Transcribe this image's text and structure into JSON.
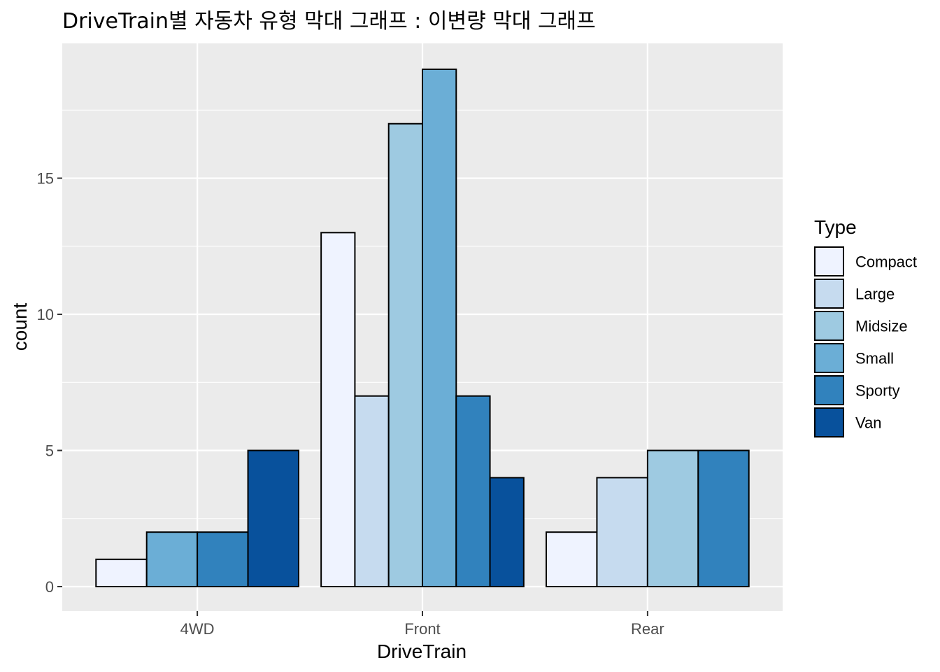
{
  "chart_data": {
    "type": "bar",
    "title": "DriveTrain별 자동차 유형 막대 그래프 : 이변량 막대 그래프",
    "xlabel": "DriveTrain",
    "ylabel": "count",
    "categories": [
      "4WD",
      "Front",
      "Rear"
    ],
    "ylim": [
      -0.9,
      19.95
    ],
    "yticks": [
      0,
      5,
      10,
      15
    ],
    "grid": true,
    "legend": {
      "title": "Type",
      "position": "right"
    },
    "series": [
      {
        "name": "Compact",
        "color": "#eff3ff",
        "values": [
          1,
          13,
          2
        ]
      },
      {
        "name": "Large",
        "color": "#c6dbef",
        "values": [
          0,
          7,
          4
        ]
      },
      {
        "name": "Midsize",
        "color": "#9ecae1",
        "values": [
          0,
          17,
          5
        ]
      },
      {
        "name": "Small",
        "color": "#6baed6",
        "values": [
          2,
          19,
          0
        ]
      },
      {
        "name": "Sporty",
        "color": "#3182bd",
        "values": [
          2,
          7,
          5
        ]
      },
      {
        "name": "Van",
        "color": "#08519c",
        "values": [
          5,
          4,
          0
        ]
      }
    ],
    "panel_background": "#ebebeb",
    "grid_color": "#ffffff"
  }
}
